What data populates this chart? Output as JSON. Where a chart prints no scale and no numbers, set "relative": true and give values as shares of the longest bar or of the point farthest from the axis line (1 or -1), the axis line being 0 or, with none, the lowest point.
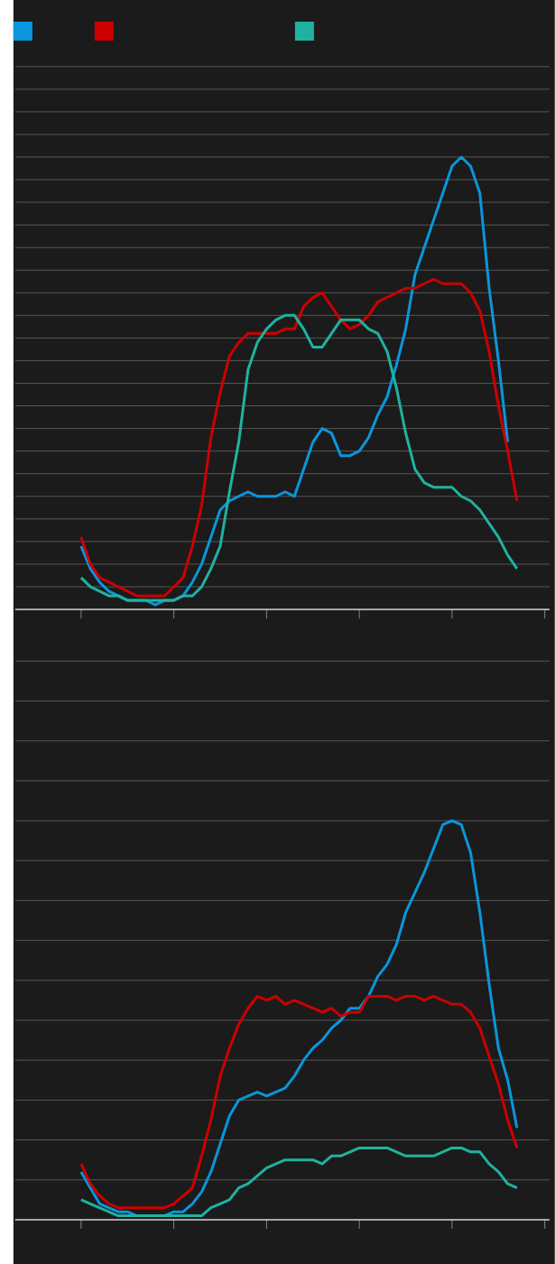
{
  "chart_data": [
    {
      "type": "line",
      "relative": true,
      "grid": "y",
      "tick_labels": false,
      "categories": [
        null,
        null,
        null,
        null,
        null,
        null,
        null,
        null,
        null,
        null,
        null,
        null,
        null,
        null,
        null,
        null,
        null,
        null,
        null,
        null,
        null,
        null,
        null,
        null,
        null,
        null,
        null,
        null,
        null,
        null,
        null,
        null,
        null,
        null,
        null,
        null,
        null,
        null,
        null,
        null,
        null,
        null,
        null,
        null,
        null,
        null,
        null,
        null
      ],
      "series": [
        {
          "color": "#0a96dc",
          "values": [
            0.14,
            0.09,
            0.06,
            0.04,
            0.03,
            0.02,
            0.02,
            0.02,
            0.01,
            0.02,
            0.02,
            0.03,
            0.06,
            0.1,
            0.16,
            0.22,
            0.24,
            0.25,
            0.26,
            0.25,
            0.25,
            0.25,
            0.26,
            0.25,
            0.31,
            0.37,
            0.4,
            0.39,
            0.34,
            0.34,
            0.35,
            0.38,
            0.43,
            0.47,
            0.54,
            0.62,
            0.74,
            0.8,
            0.86,
            0.92,
            0.98,
            1,
            0.98,
            0.92,
            0.71,
            0.55,
            0.37,
            null
          ]
        },
        {
          "color": "#cc0000",
          "values": [
            0.16,
            0.1,
            0.07,
            0.06,
            0.05,
            0.04,
            0.03,
            0.03,
            0.03,
            0.03,
            0.05,
            0.07,
            0.14,
            0.23,
            0.38,
            0.48,
            0.56,
            0.59,
            0.61,
            0.61,
            0.61,
            0.61,
            0.62,
            0.62,
            0.67,
            0.69,
            0.7,
            0.67,
            0.64,
            0.62,
            0.63,
            0.65,
            0.68,
            0.69,
            0.7,
            0.71,
            0.71,
            0.72,
            0.73,
            0.72,
            0.72,
            0.72,
            0.7,
            0.66,
            0.57,
            0.45,
            0.35,
            0.24
          ]
        },
        {
          "color": "#20b2a0",
          "values": [
            0.07,
            0.05,
            0.04,
            0.03,
            0.03,
            0.02,
            0.02,
            0.02,
            0.02,
            0.02,
            0.02,
            0.03,
            0.03,
            0.05,
            0.09,
            0.14,
            0.26,
            0.37,
            0.53,
            0.59,
            0.62,
            0.64,
            0.65,
            0.65,
            0.62,
            0.58,
            0.58,
            0.61,
            0.64,
            0.64,
            0.64,
            0.62,
            0.61,
            0.57,
            0.49,
            0.39,
            0.31,
            0.28,
            0.27,
            0.27,
            0.27,
            0.25,
            0.24,
            0.22,
            0.19,
            0.16,
            0.12,
            0.09
          ]
        }
      ]
    },
    {
      "type": "line",
      "relative": true,
      "grid": "y",
      "tick_labels": false,
      "categories": [
        null,
        null,
        null,
        null,
        null,
        null,
        null,
        null,
        null,
        null,
        null,
        null,
        null,
        null,
        null,
        null,
        null,
        null,
        null,
        null,
        null,
        null,
        null,
        null,
        null,
        null,
        null,
        null,
        null,
        null,
        null,
        null,
        null,
        null,
        null,
        null,
        null,
        null,
        null,
        null,
        null,
        null,
        null,
        null,
        null,
        null,
        null,
        null
      ],
      "series": [
        {
          "color": "#0a96dc",
          "values": [
            0.12,
            0.08,
            0.04,
            0.03,
            0.02,
            0.02,
            0.01,
            0.01,
            0.01,
            0.01,
            0.02,
            0.02,
            0.04,
            0.07,
            0.12,
            0.19,
            0.26,
            0.3,
            0.31,
            0.32,
            0.31,
            0.32,
            0.33,
            0.36,
            0.4,
            0.43,
            0.45,
            0.48,
            0.5,
            0.53,
            0.53,
            0.56,
            0.61,
            0.64,
            0.69,
            0.77,
            0.82,
            0.87,
            0.93,
            0.99,
            1,
            0.99,
            0.92,
            0.77,
            0.59,
            0.43,
            0.35,
            0.23
          ]
        },
        {
          "color": "#cc0000",
          "values": [
            0.14,
            0.09,
            0.06,
            0.04,
            0.03,
            0.03,
            0.03,
            0.03,
            0.03,
            0.03,
            0.04,
            0.06,
            0.08,
            0.16,
            0.25,
            0.36,
            0.43,
            0.49,
            0.53,
            0.56,
            0.55,
            0.56,
            0.54,
            0.55,
            0.54,
            0.53,
            0.52,
            0.53,
            0.51,
            0.52,
            0.52,
            0.56,
            0.56,
            0.56,
            0.55,
            0.56,
            0.56,
            0.55,
            0.56,
            0.55,
            0.54,
            0.54,
            0.52,
            0.48,
            0.41,
            0.34,
            0.25,
            0.18
          ]
        },
        {
          "color": "#20b2a0",
          "values": [
            0.05,
            0.04,
            0.03,
            0.02,
            0.01,
            0.01,
            0.01,
            0.01,
            0.01,
            0.01,
            0.01,
            0.01,
            0.01,
            0.01,
            0.03,
            0.04,
            0.05,
            0.08,
            0.09,
            0.11,
            0.13,
            0.14,
            0.15,
            0.15,
            0.15,
            0.15,
            0.14,
            0.16,
            0.16,
            0.17,
            0.18,
            0.18,
            0.18,
            0.18,
            0.17,
            0.16,
            0.16,
            0.16,
            0.16,
            0.17,
            0.18,
            0.18,
            0.17,
            0.17,
            0.14,
            0.12,
            0.09,
            0.08
          ]
        }
      ]
    }
  ]
}
